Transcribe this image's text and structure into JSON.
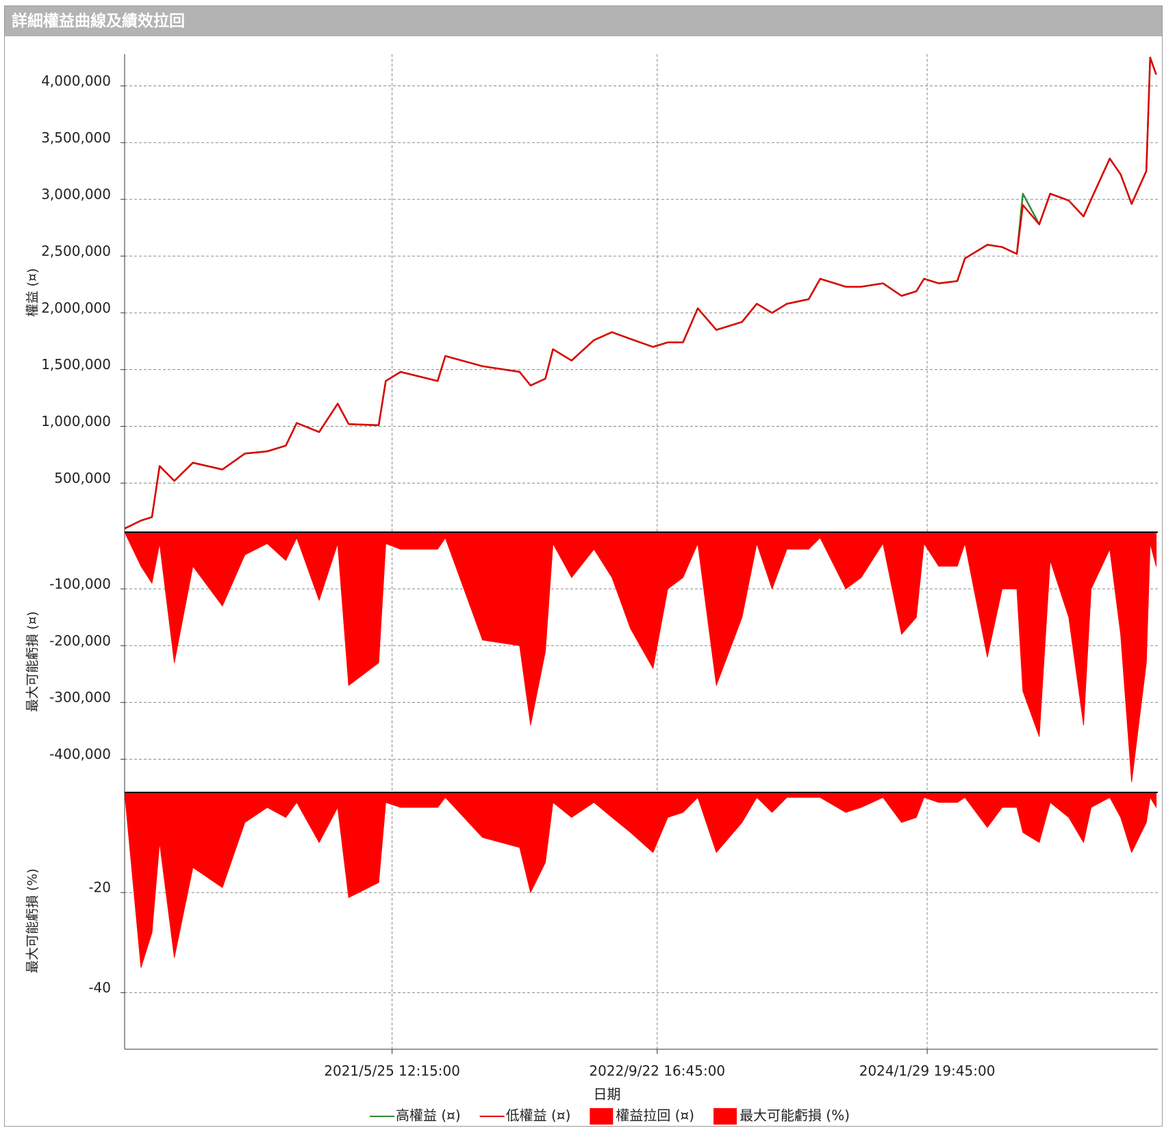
{
  "window": {
    "title": "詳細權益曲線及績效拉回"
  },
  "chart_data": {
    "type": "line",
    "xlabel": "日期",
    "x": [
      "2020/1/22",
      "2020/2/21",
      "2020/3/12",
      "2020/3/26",
      "2020/4/22",
      "2020/5/26",
      "2020/7/19",
      "2020/8/29",
      "2020/10/9",
      "2020/11/12",
      "2020/12/2",
      "2021/1/12",
      "2021/2/15",
      "2021/3/7",
      "2021/5/1",
      "2021/5/14",
      "2021/6/10",
      "2021/8/17",
      "2021/8/31",
      "2021/11/7",
      "2022/1/14",
      "2022/2/3",
      "2022/3/2",
      "2022/3/16",
      "2022/4/19",
      "2022/5/30",
      "2022/7/2",
      "2022/8/5",
      "2022/9/15",
      "2022/10/12",
      "2022/11/9",
      "2022/12/6",
      "2023/1/9",
      "2023/2/25",
      "2023/3/24",
      "2023/4/21",
      "2023/5/18",
      "2023/6/27",
      "2023/7/18",
      "2023/9/3",
      "2023/10/1",
      "2023/11/10",
      "2023/12/14",
      "2024/1/10",
      "2024/1/24",
      "2024/2/20",
      "2024/3/25",
      "2024/4/8",
      "2024/5/19",
      "2024/6/15",
      "2024/7/12",
      "2024/7/23",
      "2024/8/22",
      "2024/9/11",
      "2024/10/15",
      "2024/11/11",
      "2024/11/25",
      "2024/12/29",
      "2025/1/18",
      "2025/2/7",
      "2025/3/6",
      "2025/3/13",
      "2025/3/24"
    ],
    "xlim": [
      "2020/1/22",
      "2025/3/27"
    ],
    "xticks": [
      "2021/5/25 12:15:00",
      "2022/9/22 16:45:00",
      "2024/1/29 19:45:00"
    ],
    "grid": true,
    "panels": [
      {
        "ylabel": "權益 (¤)",
        "ylim": [
          80000,
          4280000
        ],
        "yticks": [
          {
            "value": 500000,
            "label": "500,000"
          },
          {
            "value": 1000000,
            "label": "1,000,000"
          },
          {
            "value": 1500000,
            "label": "1,500,000"
          },
          {
            "value": 2000000,
            "label": "2,000,000"
          },
          {
            "value": 2500000,
            "label": "2,500,000"
          },
          {
            "value": 3000000,
            "label": "3,000,000"
          },
          {
            "value": 3500000,
            "label": "3,500,000"
          },
          {
            "value": 4000000,
            "label": "4,000,000"
          }
        ]
      },
      {
        "ylabel": "最大可能虧損 (¤)",
        "ylim": [
          -456000,
          0
        ],
        "yticks": [
          {
            "value": -100000,
            "label": "-100,000"
          },
          {
            "value": -200000,
            "label": "-200,000"
          },
          {
            "value": -300000,
            "label": "-300,000"
          },
          {
            "value": -400000,
            "label": "-400,000"
          }
        ]
      },
      {
        "ylabel": "最大可能虧損 (%)",
        "ylim": [
          -51.3,
          0
        ],
        "yticks": [
          -20,
          -40
        ]
      }
    ],
    "series": [
      {
        "name": "高權益 (¤)",
        "color": "#2e8b2e",
        "style": "line",
        "panel": 0,
        "values": [
          100000,
          170000,
          200000,
          650000,
          520000,
          680000,
          620000,
          760000,
          780000,
          830000,
          1030000,
          950000,
          1200000,
          1020000,
          1010000,
          1400000,
          1480000,
          1400000,
          1620000,
          1530000,
          1480000,
          1360000,
          1420000,
          1680000,
          1580000,
          1760000,
          1830000,
          1770000,
          1700000,
          1740000,
          1740000,
          2040000,
          1850000,
          1920000,
          2080000,
          2000000,
          2080000,
          2120000,
          2300000,
          2230000,
          2230000,
          2260000,
          2150000,
          2190000,
          2300000,
          2260000,
          2280000,
          2480000,
          2600000,
          2580000,
          2520000,
          3050000,
          2780000,
          3050000,
          2990000,
          2850000,
          3000000,
          3360000,
          3220000,
          2960000,
          3250000,
          4250000,
          4100000
        ]
      },
      {
        "name": "低權益 (¤)",
        "color": "#e00000",
        "style": "line",
        "panel": 0,
        "values": [
          100000,
          170000,
          200000,
          650000,
          520000,
          680000,
          620000,
          760000,
          780000,
          830000,
          1030000,
          950000,
          1200000,
          1020000,
          1010000,
          1400000,
          1480000,
          1400000,
          1620000,
          1530000,
          1480000,
          1360000,
          1420000,
          1680000,
          1580000,
          1760000,
          1830000,
          1770000,
          1700000,
          1740000,
          1740000,
          2040000,
          1850000,
          1920000,
          2080000,
          2000000,
          2080000,
          2120000,
          2300000,
          2230000,
          2230000,
          2260000,
          2150000,
          2190000,
          2300000,
          2260000,
          2280000,
          2480000,
          2600000,
          2580000,
          2520000,
          2950000,
          2780000,
          3050000,
          2990000,
          2850000,
          3000000,
          3360000,
          3220000,
          2960000,
          3250000,
          4250000,
          4100000
        ]
      },
      {
        "name": "權益拉回 (¤)",
        "color": "#ff0000",
        "style": "area",
        "panel": 1,
        "values": [
          0,
          -60000,
          -90000,
          -20000,
          -230000,
          -60000,
          -130000,
          -40000,
          -20000,
          -50000,
          -10000,
          -120000,
          -20000,
          -270000,
          -230000,
          -20000,
          -30000,
          -30000,
          -10000,
          -190000,
          -200000,
          -340000,
          -210000,
          -20000,
          -80000,
          -30000,
          -80000,
          -170000,
          -240000,
          -100000,
          -80000,
          -20000,
          -270000,
          -150000,
          -20000,
          -100000,
          -30000,
          -30000,
          -10000,
          -100000,
          -80000,
          -20000,
          -180000,
          -150000,
          -20000,
          -60000,
          -60000,
          -20000,
          -220000,
          -100000,
          -100000,
          -280000,
          -360000,
          -50000,
          -150000,
          -340000,
          -100000,
          -30000,
          -180000,
          -440000,
          -230000,
          -20000,
          -60000
        ]
      },
      {
        "name": "最大可能虧損 (%)",
        "color": "#ff0000",
        "style": "area",
        "panel": 2,
        "values": [
          0,
          -35,
          -28,
          -10,
          -33,
          -15,
          -19,
          -6,
          -3,
          -5,
          -2,
          -10,
          -3,
          -21,
          -18,
          -2,
          -3,
          -3,
          -1,
          -9,
          -11,
          -20,
          -14,
          -2,
          -5,
          -2,
          -5,
          -8,
          -12,
          -5,
          -4,
          -1,
          -12,
          -6,
          -1,
          -4,
          -1,
          -1,
          -1,
          -4,
          -3,
          -1,
          -6,
          -5,
          -1,
          -2,
          -2,
          -1,
          -7,
          -3,
          -3,
          -8,
          -10,
          -2,
          -5,
          -10,
          -3,
          -1,
          -5,
          -12,
          -6,
          -1,
          -3
        ]
      }
    ]
  }
}
